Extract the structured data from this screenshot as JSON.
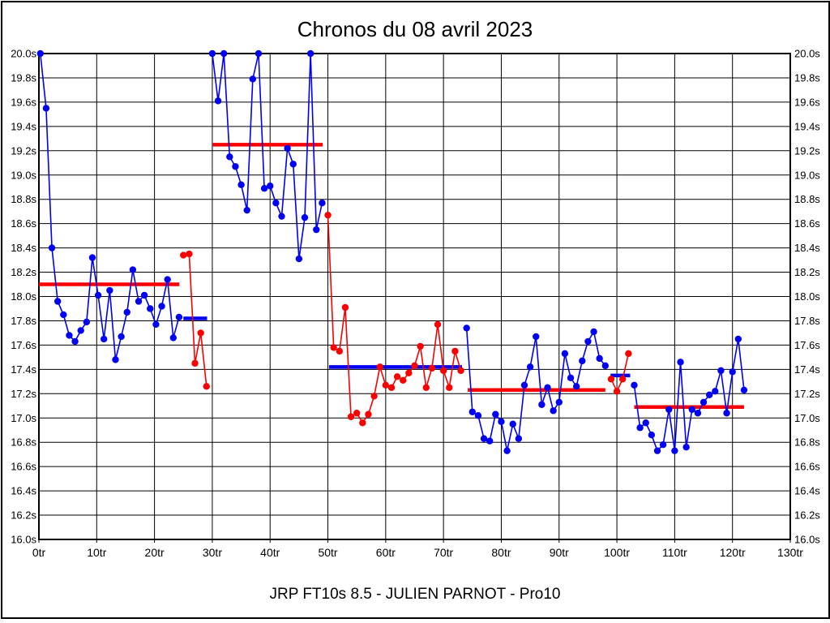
{
  "chart_data": {
    "type": "line",
    "title": "Chronos du 08 avril 2023",
    "footer": "JRP FT10s 8.5 - JULIEN PARNOT - Pro10",
    "grid": true,
    "legend": "none",
    "x_axis": {
      "min": 0,
      "max": 130,
      "tick_step": 10,
      "unit": "tr",
      "tick_labels": [
        "0tr",
        "10tr",
        "20tr",
        "30tr",
        "40tr",
        "50tr",
        "60tr",
        "70tr",
        "80tr",
        "90tr",
        "100tr",
        "110tr",
        "120tr",
        "130tr"
      ]
    },
    "y_axis": {
      "min": 16.0,
      "max": 20.0,
      "tick_step": 0.2,
      "unit": "s",
      "tick_labels": [
        "20.0s",
        "19.8s",
        "19.6s",
        "19.4s",
        "19.2s",
        "19.0s",
        "18.8s",
        "18.6s",
        "18.4s",
        "18.2s",
        "18.0s",
        "17.8s",
        "17.6s",
        "17.4s",
        "17.2s",
        "17.0s",
        "16.8s",
        "16.6s",
        "16.4s",
        "16.2s",
        "16.0s"
      ]
    },
    "colors": {
      "blue": "#0000f5",
      "red": "#fa0000",
      "grid": "#000000",
      "frame": "#000000",
      "background": "#ffffff"
    },
    "series": [
      {
        "name": "run-1",
        "color": "blue",
        "start_lap": 0.25,
        "values": [
          20.0,
          19.55,
          18.4,
          17.96,
          17.85,
          17.68,
          17.63,
          17.72,
          17.79,
          18.32,
          18.01,
          17.65,
          18.05,
          17.48,
          17.67,
          17.87,
          18.22,
          17.96,
          18.01,
          17.9,
          17.77,
          17.92,
          18.14,
          17.66,
          17.83
        ],
        "average": {
          "value": 18.1,
          "from_lap": 0.0,
          "to_lap": 24.3,
          "color": "red"
        }
      },
      {
        "name": "run-2",
        "color": "red",
        "start_lap": 25,
        "values": [
          18.34,
          18.35,
          17.45,
          17.7,
          17.26
        ],
        "average": {
          "value": 17.82,
          "from_lap": 25.0,
          "to_lap": 29.1,
          "color": "blue"
        }
      },
      {
        "name": "run-3",
        "color": "blue",
        "start_lap": 30,
        "values": [
          20.0,
          19.61,
          20.0,
          19.15,
          19.07,
          18.92,
          18.71,
          19.79,
          20.0,
          18.89,
          18.91,
          18.77,
          18.66,
          19.22,
          19.09,
          18.31,
          18.65,
          20.0,
          18.55,
          18.77
        ],
        "average": {
          "value": 19.25,
          "from_lap": 30.1,
          "to_lap": 49.1,
          "color": "red"
        }
      },
      {
        "name": "run-4",
        "color": "red",
        "start_lap": 50,
        "values": [
          18.67,
          17.58,
          17.55,
          17.91,
          17.01,
          17.04,
          16.96,
          17.03,
          17.18,
          17.42,
          17.27,
          17.25,
          17.34,
          17.31,
          17.37,
          17.43,
          17.59,
          17.25,
          17.41,
          17.77,
          17.39,
          17.25,
          17.55,
          17.39
        ],
        "average": {
          "value": 17.42,
          "from_lap": 50.2,
          "to_lap": 73.2,
          "color": "blue"
        }
      },
      {
        "name": "run-5",
        "color": "blue",
        "start_lap": 74,
        "values": [
          17.74,
          17.05,
          17.02,
          16.83,
          16.81,
          17.03,
          16.97,
          16.73,
          16.95,
          16.83,
          17.27,
          17.42,
          17.67,
          17.11,
          17.25,
          17.06,
          17.13,
          17.53,
          17.33,
          17.26,
          17.47,
          17.63,
          17.71,
          17.49,
          17.43
        ],
        "average": {
          "value": 17.23,
          "from_lap": 74.2,
          "to_lap": 98.0,
          "color": "red"
        }
      },
      {
        "name": "run-6",
        "color": "red",
        "start_lap": 99,
        "values": [
          17.32,
          17.22,
          17.32,
          17.53
        ],
        "average": {
          "value": 17.35,
          "from_lap": 98.9,
          "to_lap": 102.3,
          "color": "blue"
        }
      },
      {
        "name": "run-7",
        "color": "blue",
        "start_lap": 103,
        "values": [
          17.27,
          16.92,
          16.96,
          16.86,
          16.73,
          16.78,
          17.07,
          16.73,
          17.46,
          16.76,
          17.07,
          17.04,
          17.13,
          17.19,
          17.22,
          17.39,
          17.04,
          17.38,
          17.65,
          17.23
        ],
        "average": {
          "value": 17.09,
          "from_lap": 103.0,
          "to_lap": 122.0,
          "color": "red"
        }
      }
    ]
  }
}
